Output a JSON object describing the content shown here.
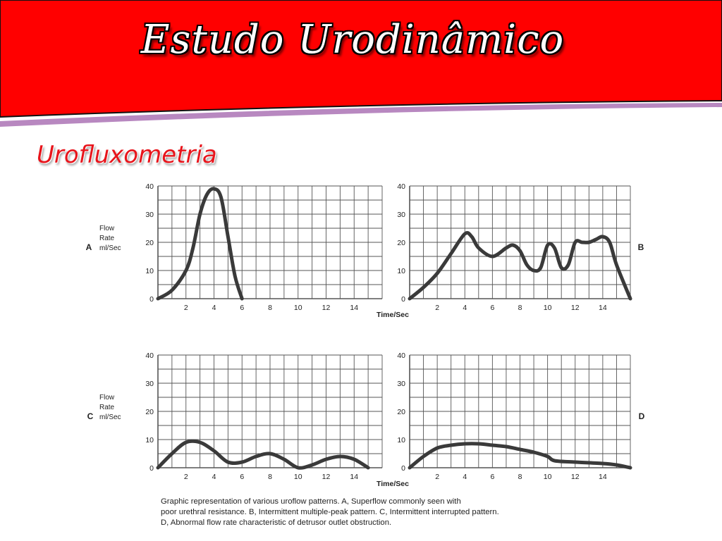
{
  "slide": {
    "title": "Estudo Urodinâmico",
    "subtitle": "Urofluxometria",
    "title_bar_color": "#ff0000",
    "accent_line_color": "#b888c0",
    "subtitle_color": "#e8141b"
  },
  "axis_text": {
    "y_label_lines": [
      "Flow",
      "Rate",
      "ml/Sec"
    ],
    "x_label": "Time/Sec"
  },
  "caption": {
    "lines": [
      "Graphic representation of various uroflow patterns. A, Superflow commonly seen with",
      "poor urethral resistance. B, Intermittent multiple-peak pattern. C, Intermittent interrupted pattern.",
      "D, Abnormal flow rate characteristic of detrusor outlet obstruction."
    ]
  },
  "chart_data": [
    {
      "type": "line",
      "panel_letter": "A",
      "xlim": [
        0,
        16
      ],
      "ylim": [
        0,
        40
      ],
      "x_ticks": [
        2,
        4,
        6,
        8,
        10,
        12,
        14
      ],
      "y_ticks": [
        0,
        10,
        20,
        30,
        40
      ],
      "grid": true,
      "x": [
        0,
        1,
        2,
        2.5,
        3,
        3.5,
        4,
        4.5,
        5,
        5.5,
        6
      ],
      "y": [
        0,
        3,
        10,
        18,
        30,
        37,
        39,
        36,
        22,
        8,
        0
      ]
    },
    {
      "type": "line",
      "panel_letter": "B",
      "xlim": [
        0,
        16
      ],
      "ylim": [
        0,
        40
      ],
      "x_ticks": [
        2,
        4,
        6,
        8,
        10,
        12,
        14
      ],
      "y_ticks": [
        0,
        10,
        20,
        30,
        40
      ],
      "grid": true,
      "x": [
        0,
        1,
        2,
        3,
        4,
        4.5,
        5,
        6,
        7,
        7.5,
        8,
        8.5,
        9,
        9.5,
        10,
        10.5,
        11,
        11.5,
        12,
        12.5,
        13,
        13.5,
        14,
        14.5,
        15,
        16
      ],
      "y": [
        0,
        4,
        9,
        16,
        23,
        22,
        18,
        15,
        18,
        19,
        17,
        12,
        10,
        11,
        19,
        18,
        11,
        12,
        20,
        20,
        20,
        21,
        22,
        20,
        12,
        0
      ]
    },
    {
      "type": "line",
      "panel_letter": "C",
      "xlim": [
        0,
        16
      ],
      "ylim": [
        0,
        40
      ],
      "x_ticks": [
        2,
        4,
        6,
        8,
        10,
        12,
        14
      ],
      "y_ticks": [
        0,
        10,
        20,
        30,
        40
      ],
      "grid": true,
      "x": [
        0,
        1,
        2,
        3,
        4,
        5,
        6,
        7,
        8,
        9,
        10,
        11,
        12,
        13,
        14,
        15
      ],
      "y": [
        0,
        5,
        9,
        9,
        6,
        2,
        2,
        4,
        5,
        3,
        0,
        1,
        3,
        4,
        3,
        0
      ]
    },
    {
      "type": "line",
      "panel_letter": "D",
      "xlim": [
        0,
        16
      ],
      "ylim": [
        0,
        40
      ],
      "x_ticks": [
        2,
        4,
        6,
        8,
        10,
        12,
        14
      ],
      "y_ticks": [
        0,
        10,
        20,
        30,
        40
      ],
      "grid": true,
      "x": [
        0,
        1,
        2,
        3,
        4,
        5,
        6,
        7,
        8,
        9,
        10,
        10.5,
        12,
        14,
        15,
        16
      ],
      "y": [
        0,
        4,
        7,
        8,
        8.5,
        8.5,
        8,
        7.5,
        6.5,
        5.5,
        4,
        2.5,
        2,
        1.5,
        1,
        0
      ]
    }
  ]
}
